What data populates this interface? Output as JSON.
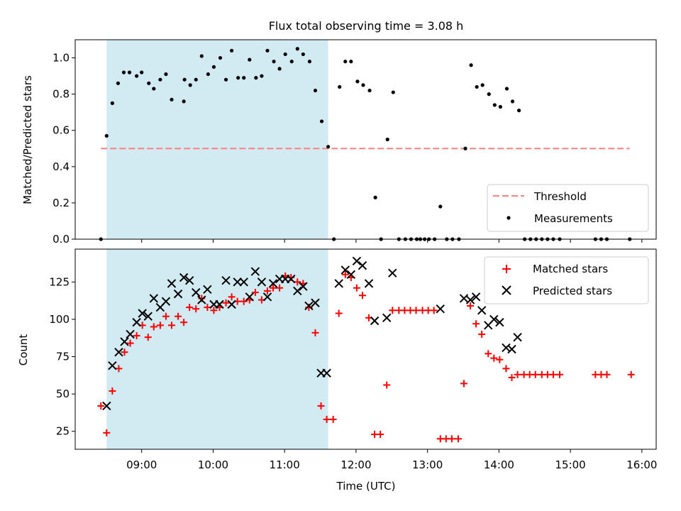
{
  "chart_data": {
    "type": "scatter",
    "title": "Flux total observing time = 3.08 h",
    "xlabel": "Time (UTC)",
    "x_tick_labels": [
      "09:00",
      "10:00",
      "11:00",
      "12:00",
      "13:00",
      "14:00",
      "15:00",
      "16:00"
    ],
    "x_range_hours": [
      8.07,
      16.2
    ],
    "shaded_interval": [
      8.51,
      11.61
    ],
    "shade_color": "#add8e6",
    "top_panel": {
      "ylabel": "Matched/Predicted stars",
      "ylim": [
        0,
        1.1
      ],
      "y_tick_labels": [
        "0.0",
        "0.2",
        "0.4",
        "0.6",
        "0.8",
        "1.0"
      ],
      "legend_location": "lower right",
      "threshold": {
        "name": "Threshold",
        "value": 0.5,
        "x_range": [
          8.43,
          15.83
        ],
        "color": "#ff8080"
      },
      "measurements": {
        "name": "Measurements",
        "color": "#000000",
        "points": [
          [
            8.43,
            0.0
          ],
          [
            8.51,
            0.57
          ],
          [
            8.59,
            0.75
          ],
          [
            8.67,
            0.86
          ],
          [
            8.75,
            0.92
          ],
          [
            8.83,
            0.92
          ],
          [
            8.93,
            0.9
          ],
          [
            9.0,
            0.92
          ],
          [
            9.1,
            0.86
          ],
          [
            9.17,
            0.83
          ],
          [
            9.26,
            0.88
          ],
          [
            9.34,
            0.91
          ],
          [
            9.42,
            0.77
          ],
          [
            9.6,
            0.88
          ],
          [
            9.59,
            0.76
          ],
          [
            9.68,
            0.85
          ],
          [
            9.76,
            0.88
          ],
          [
            9.84,
            1.01
          ],
          [
            9.93,
            0.91
          ],
          [
            10.01,
            0.95
          ],
          [
            10.1,
            1.0
          ],
          [
            10.18,
            0.88
          ],
          [
            10.26,
            1.04
          ],
          [
            10.35,
            0.89
          ],
          [
            10.43,
            0.89
          ],
          [
            10.51,
            0.99
          ],
          [
            10.6,
            0.89
          ],
          [
            10.68,
            0.9
          ],
          [
            10.76,
            1.04
          ],
          [
            10.85,
            0.98
          ],
          [
            10.93,
            0.94
          ],
          [
            11.01,
            1.02
          ],
          [
            11.1,
            0.98
          ],
          [
            11.18,
            1.05
          ],
          [
            11.26,
            1.02
          ],
          [
            11.35,
            0.98
          ],
          [
            11.43,
            0.82
          ],
          [
            11.52,
            0.65
          ],
          [
            11.61,
            0.51
          ],
          [
            11.69,
            0.0
          ],
          [
            11.77,
            0.84
          ],
          [
            11.85,
            0.98
          ],
          [
            11.93,
            0.98
          ],
          [
            12.02,
            0.87
          ],
          [
            12.1,
            0.85
          ],
          [
            12.19,
            0.82
          ],
          [
            12.27,
            0.23
          ],
          [
            12.35,
            0.0
          ],
          [
            12.44,
            0.55
          ],
          [
            12.52,
            0.81
          ],
          [
            12.6,
            0.0
          ],
          [
            12.69,
            0.0
          ],
          [
            12.77,
            0.0
          ],
          [
            12.85,
            0.0
          ],
          [
            12.9,
            0.0
          ],
          [
            12.96,
            0.0
          ],
          [
            13.02,
            0.0
          ],
          [
            13.1,
            0.0
          ],
          [
            13.18,
            0.18
          ],
          [
            13.27,
            0.0
          ],
          [
            13.35,
            0.0
          ],
          [
            13.44,
            0.0
          ],
          [
            13.53,
            0.5
          ],
          [
            13.61,
            0.96
          ],
          [
            13.69,
            0.84
          ],
          [
            13.77,
            0.85
          ],
          [
            13.86,
            0.8
          ],
          [
            13.94,
            0.74
          ],
          [
            14.02,
            0.73
          ],
          [
            14.11,
            0.83
          ],
          [
            14.19,
            0.76
          ],
          [
            14.28,
            0.71
          ],
          [
            14.36,
            0.0
          ],
          [
            14.44,
            0.0
          ],
          [
            14.52,
            0.0
          ],
          [
            14.6,
            0.0
          ],
          [
            14.68,
            0.0
          ],
          [
            14.76,
            0.0
          ],
          [
            14.85,
            0.0
          ],
          [
            15.35,
            0.0
          ],
          [
            15.43,
            0.0
          ],
          [
            15.51,
            0.0
          ],
          [
            15.83,
            0.0
          ]
        ]
      }
    },
    "bottom_panel": {
      "ylabel": "Count",
      "ylim": [
        13,
        147
      ],
      "y_tick_labels": [
        "25",
        "50",
        "75",
        "100",
        "125"
      ],
      "legend_location": "upper right",
      "series": [
        {
          "name": "Matched stars",
          "marker": "plus",
          "color": "#ff0000",
          "points": [
            [
              8.43,
              42
            ],
            [
              8.51,
              24
            ],
            [
              8.59,
              52
            ],
            [
              8.68,
              67
            ],
            [
              8.76,
              78
            ],
            [
              8.84,
              84
            ],
            [
              8.93,
              89
            ],
            [
              9.01,
              96
            ],
            [
              9.09,
              88
            ],
            [
              9.17,
              95
            ],
            [
              9.26,
              96
            ],
            [
              9.34,
              102
            ],
            [
              9.42,
              96
            ],
            [
              9.51,
              102
            ],
            [
              9.59,
              98
            ],
            [
              9.67,
              108
            ],
            [
              9.76,
              107
            ],
            [
              9.84,
              114
            ],
            [
              9.92,
              108
            ],
            [
              10.01,
              106
            ],
            [
              10.09,
              108
            ],
            [
              10.18,
              111
            ],
            [
              10.26,
              115
            ],
            [
              10.34,
              112
            ],
            [
              10.43,
              112
            ],
            [
              10.51,
              113
            ],
            [
              10.59,
              118
            ],
            [
              10.68,
              113
            ],
            [
              10.76,
              119
            ],
            [
              10.84,
              121
            ],
            [
              10.93,
              121
            ],
            [
              11.01,
              129
            ],
            [
              11.09,
              128
            ],
            [
              11.18,
              125
            ],
            [
              11.26,
              124
            ],
            [
              11.34,
              108
            ],
            [
              11.43,
              91
            ],
            [
              11.51,
              42
            ],
            [
              11.59,
              33
            ],
            [
              11.68,
              33
            ],
            [
              11.76,
              104
            ],
            [
              11.85,
              130
            ],
            [
              11.93,
              128
            ],
            [
              12.01,
              121
            ],
            [
              12.09,
              116
            ],
            [
              12.18,
              101
            ],
            [
              12.26,
              23
            ],
            [
              12.34,
              23
            ],
            [
              12.43,
              56
            ],
            [
              12.51,
              106
            ],
            [
              12.6,
              106
            ],
            [
              12.68,
              106
            ],
            [
              12.76,
              106
            ],
            [
              12.84,
              106
            ],
            [
              12.93,
              106
            ],
            [
              13.01,
              106
            ],
            [
              13.09,
              106
            ],
            [
              13.18,
              20
            ],
            [
              13.26,
              20
            ],
            [
              13.34,
              20
            ],
            [
              13.43,
              20
            ],
            [
              13.51,
              57
            ],
            [
              13.6,
              109
            ],
            [
              13.68,
              97
            ],
            [
              13.76,
              90
            ],
            [
              13.85,
              77
            ],
            [
              13.93,
              74
            ],
            [
              14.01,
              73
            ],
            [
              14.1,
              67
            ],
            [
              14.18,
              61
            ],
            [
              14.26,
              63
            ],
            [
              14.35,
              63
            ],
            [
              14.43,
              63
            ],
            [
              14.51,
              63
            ],
            [
              14.6,
              63
            ],
            [
              14.68,
              63
            ],
            [
              14.76,
              63
            ],
            [
              14.85,
              63
            ],
            [
              15.35,
              63
            ],
            [
              15.43,
              63
            ],
            [
              15.51,
              63
            ],
            [
              15.85,
              63
            ]
          ]
        },
        {
          "name": "Predicted stars",
          "marker": "x",
          "color": "#000000",
          "points": [
            [
              8.51,
              42
            ],
            [
              8.59,
              69
            ],
            [
              8.68,
              78
            ],
            [
              8.76,
              85
            ],
            [
              8.84,
              90
            ],
            [
              8.93,
              98
            ],
            [
              9.01,
              104
            ],
            [
              9.09,
              102
            ],
            [
              9.17,
              114
            ],
            [
              9.26,
              108
            ],
            [
              9.34,
              112
            ],
            [
              9.42,
              124
            ],
            [
              9.51,
              117
            ],
            [
              9.59,
              128
            ],
            [
              9.67,
              126
            ],
            [
              9.76,
              118
            ],
            [
              9.84,
              113
            ],
            [
              9.92,
              120
            ],
            [
              10.01,
              110
            ],
            [
              10.09,
              110
            ],
            [
              10.18,
              126
            ],
            [
              10.26,
              110
            ],
            [
              10.34,
              125
            ],
            [
              10.43,
              125
            ],
            [
              10.51,
              115
            ],
            [
              10.59,
              132
            ],
            [
              10.68,
              125
            ],
            [
              10.76,
              115
            ],
            [
              10.84,
              124
            ],
            [
              10.93,
              127
            ],
            [
              11.01,
              127
            ],
            [
              11.09,
              127
            ],
            [
              11.18,
              119
            ],
            [
              11.26,
              122
            ],
            [
              11.34,
              109
            ],
            [
              11.43,
              111
            ],
            [
              11.51,
              64
            ],
            [
              11.59,
              64
            ],
            [
              11.76,
              124
            ],
            [
              11.85,
              133
            ],
            [
              11.93,
              130
            ],
            [
              12.01,
              139
            ],
            [
              12.09,
              136
            ],
            [
              12.18,
              124
            ],
            [
              12.26,
              99
            ],
            [
              12.43,
              101
            ],
            [
              12.51,
              131
            ],
            [
              13.18,
              107
            ],
            [
              13.51,
              114
            ],
            [
              13.6,
              113
            ],
            [
              13.68,
              115
            ],
            [
              13.76,
              106
            ],
            [
              13.85,
              96
            ],
            [
              13.93,
              100
            ],
            [
              14.01,
              98
            ],
            [
              14.1,
              81
            ],
            [
              14.18,
              80
            ],
            [
              14.26,
              88
            ]
          ]
        }
      ]
    }
  }
}
